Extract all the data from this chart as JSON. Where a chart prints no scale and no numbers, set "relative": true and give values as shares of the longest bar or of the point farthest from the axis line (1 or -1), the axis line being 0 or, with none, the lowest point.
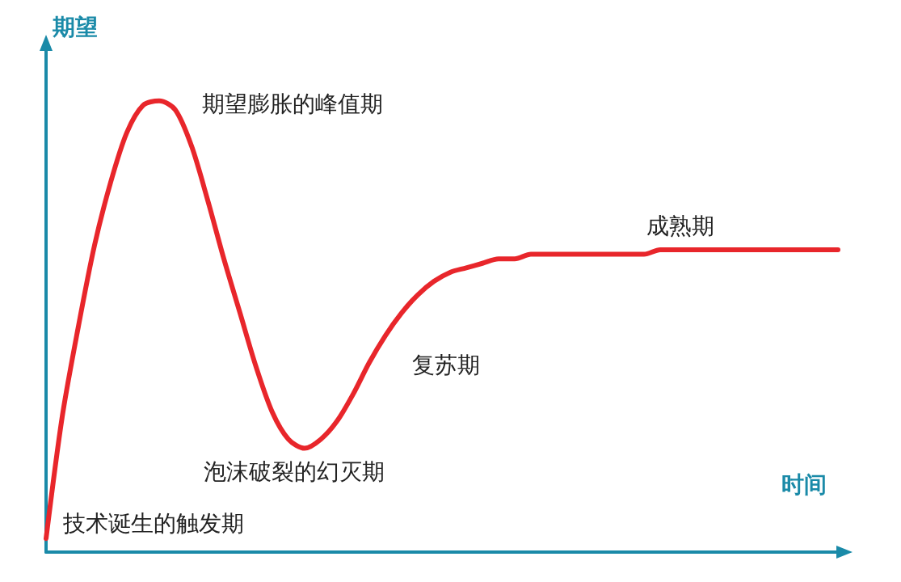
{
  "chart_data": {
    "type": "line",
    "relative": true,
    "xlabel": "时间",
    "ylabel": "期望",
    "categories": [
      null,
      null,
      null,
      null,
      null,
      null,
      null,
      null,
      null,
      null,
      null,
      null,
      null,
      null,
      null,
      null,
      null,
      null,
      null,
      null,
      null,
      null,
      null,
      null,
      null,
      null,
      null,
      null,
      null,
      null,
      null,
      null,
      null,
      null,
      null,
      null,
      null,
      null,
      null,
      null,
      null,
      null,
      null,
      null,
      null,
      null,
      null,
      null,
      null,
      null
    ],
    "series": [
      {
        "color": "#e8262b",
        "values": [
          0.03,
          0.3,
          0.5,
          0.68,
          0.82,
          0.93,
          0.99,
          1.0,
          0.98,
          0.9,
          0.78,
          0.65,
          0.53,
          0.41,
          0.31,
          0.25,
          0.23,
          0.25,
          0.29,
          0.35,
          0.42,
          0.48,
          0.53,
          0.57,
          0.6,
          0.62,
          0.63,
          0.64,
          0.65,
          0.65,
          0.66,
          0.66,
          0.66,
          0.66,
          0.66,
          0.66,
          0.66,
          0.66,
          0.67,
          0.67,
          0.67,
          0.67,
          0.67,
          0.67,
          0.67,
          0.67,
          0.67,
          0.67,
          0.67,
          0.67
        ]
      }
    ],
    "annotations": [
      "期望膨胀的峰值期",
      "成熟期",
      "复苏期",
      "泡沫破裂的幻灭期",
      "技术诞生的触发期"
    ],
    "marker": "none",
    "line_style": "solid",
    "grid": false
  }
}
